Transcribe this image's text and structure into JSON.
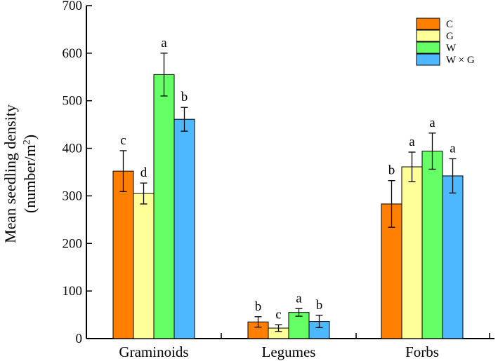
{
  "chart_data": {
    "type": "bar",
    "title": "",
    "xlabel": "",
    "ylabel_line1": "Mean seedling density",
    "ylabel_line2_prefix": "(number/m",
    "ylabel_line2_sup": "2",
    "ylabel_line2_suffix": ")",
    "ylim": [
      0,
      700
    ],
    "yticks": [
      0,
      100,
      200,
      300,
      400,
      500,
      600,
      700
    ],
    "grid": false,
    "legend_position": "top-right",
    "categories": [
      "Graminoids",
      "Legumes",
      "Forbs"
    ],
    "series": [
      {
        "name": "C",
        "color": "#FF7F00",
        "values": [
          352,
          35,
          283
        ],
        "errors": [
          43,
          11,
          49
        ],
        "letters": [
          "c",
          "b",
          "b"
        ]
      },
      {
        "name": "G",
        "color": "#FFFF99",
        "values": [
          305,
          22,
          361
        ],
        "errors": [
          22,
          7,
          31
        ],
        "letters": [
          "d",
          "c",
          "a"
        ]
      },
      {
        "name": "W",
        "color": "#66FF66",
        "values": [
          555,
          55,
          394
        ],
        "errors": [
          45,
          8,
          38
        ],
        "letters": [
          "a",
          "a",
          "a"
        ]
      },
      {
        "name": "W × G",
        "color": "#4DB8FF",
        "values": [
          461,
          36,
          342
        ],
        "errors": [
          25,
          13,
          36
        ],
        "letters": [
          "b",
          "b",
          "a"
        ]
      }
    ]
  }
}
